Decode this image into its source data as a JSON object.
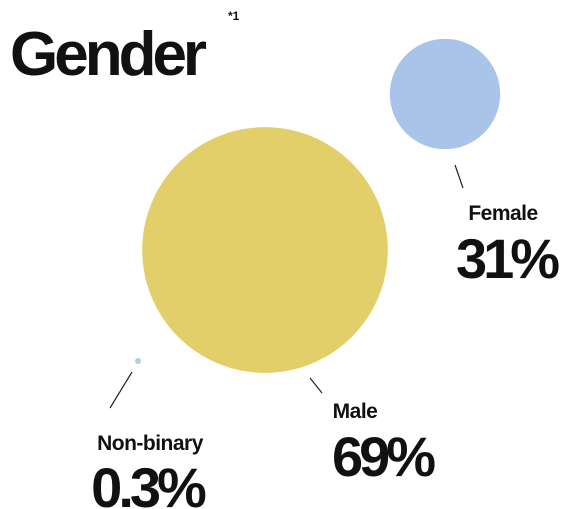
{
  "chart_data": {
    "type": "bubble",
    "title": "Gender",
    "annotations": [
      "*1"
    ],
    "categories": [
      "Male",
      "Female",
      "Non-binary"
    ],
    "values": [
      69,
      31,
      0.3
    ],
    "value_labels": [
      "69%",
      "31%",
      "0.3%"
    ],
    "colors": [
      "#e2cf6a",
      "#a9c4e8",
      "#a9d4e4"
    ]
  }
}
